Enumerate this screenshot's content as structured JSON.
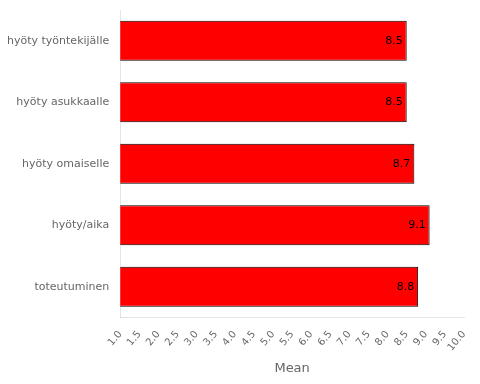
{
  "chart_data": {
    "type": "bar",
    "orientation": "horizontal",
    "categories": [
      "toteutuminen",
      "hyöty/aika",
      "hyöty omaiselle",
      "hyöty asukkaalle",
      "hyöty työntekijälle"
    ],
    "values": [
      8.8,
      9.1,
      8.7,
      8.5,
      8.5
    ],
    "color": "#ff0000",
    "x_label": "Mean",
    "xlim": [
      1.0,
      10.0
    ],
    "xticks": [
      {
        "value": 1,
        "label": "1.0"
      },
      1.5,
      {
        "value": 2,
        "label": "2.0"
      },
      2.5,
      {
        "value": 3,
        "label": "3.0"
      },
      3.5,
      {
        "value": 4,
        "label": "4.0"
      },
      4.5,
      {
        "value": 5,
        "label": "5.0"
      },
      5.5,
      {
        "value": 6,
        "label": "6.0"
      },
      6.5,
      {
        "value": 7,
        "label": "7.0"
      },
      7.5,
      {
        "value": 8,
        "label": "8.0"
      },
      8.5,
      {
        "value": 9,
        "label": "9.0"
      },
      9.5,
      {
        "value": 10,
        "label": "10.0"
      }
    ],
    "data_labels": true,
    "grid": false
  }
}
